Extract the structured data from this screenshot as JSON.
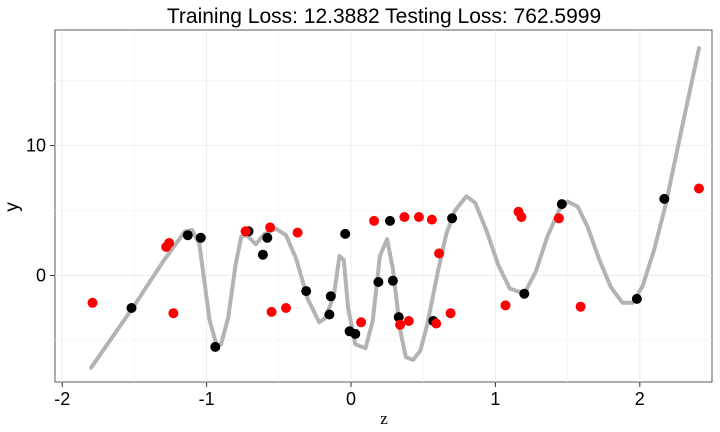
{
  "chart_data": {
    "type": "scatter",
    "title": "Training Loss: 12.3882 Testing Loss: 762.5999",
    "xlabel": "z",
    "ylabel": "y",
    "xlim": [
      -2.05,
      2.5
    ],
    "ylim": [
      -8.2,
      18.9
    ],
    "xticks": [
      -2,
      -1,
      0,
      1,
      2
    ],
    "yticks": [
      0,
      10
    ],
    "grid": true,
    "series": [
      {
        "color": "#000000",
        "role": "training points",
        "points": [
          [
            -1.52,
            -2.5
          ],
          [
            -1.13,
            3.1
          ],
          [
            -1.04,
            2.9
          ],
          [
            -0.94,
            -5.5
          ],
          [
            -0.71,
            3.4
          ],
          [
            -0.61,
            1.6
          ],
          [
            -0.58,
            2.9
          ],
          [
            -0.31,
            -1.2
          ],
          [
            -0.15,
            -3.0
          ],
          [
            -0.14,
            -1.6
          ],
          [
            -0.04,
            3.2
          ],
          [
            -0.01,
            -4.3
          ],
          [
            0.03,
            -4.5
          ],
          [
            0.19,
            -0.5
          ],
          [
            0.27,
            4.2
          ],
          [
            0.29,
            -0.4
          ],
          [
            0.33,
            -3.2
          ],
          [
            0.57,
            -3.5
          ],
          [
            0.7,
            4.4
          ],
          [
            1.2,
            -1.4
          ],
          [
            1.46,
            5.5
          ],
          [
            1.98,
            -1.8
          ],
          [
            2.17,
            5.9
          ]
        ]
      },
      {
        "color": "#ff0000",
        "role": "testing points",
        "points": [
          [
            -1.79,
            -2.1
          ],
          [
            -1.28,
            2.2
          ],
          [
            -1.26,
            2.5
          ],
          [
            -1.23,
            -2.9
          ],
          [
            -0.73,
            3.4
          ],
          [
            -0.56,
            3.7
          ],
          [
            -0.55,
            -2.8
          ],
          [
            -0.45,
            -2.5
          ],
          [
            -0.37,
            3.3
          ],
          [
            0.07,
            -3.6
          ],
          [
            0.16,
            4.2
          ],
          [
            0.34,
            -3.8
          ],
          [
            0.37,
            4.5
          ],
          [
            0.4,
            -3.5
          ],
          [
            0.47,
            4.5
          ],
          [
            0.56,
            4.3
          ],
          [
            0.59,
            -3.7
          ],
          [
            0.61,
            1.7
          ],
          [
            0.69,
            -2.9
          ],
          [
            1.07,
            -2.3
          ],
          [
            1.16,
            4.9
          ],
          [
            1.18,
            4.5
          ],
          [
            1.44,
            4.4
          ],
          [
            1.59,
            -2.4
          ],
          [
            2.41,
            6.7
          ]
        ]
      },
      {
        "color": "#b3b3b3",
        "role": "fitted curve",
        "type": "line",
        "points": [
          [
            -1.8,
            -7.1
          ],
          [
            -1.5,
            -2.3
          ],
          [
            -1.3,
            1.1
          ],
          [
            -1.15,
            3.4
          ],
          [
            -1.1,
            3.5
          ],
          [
            -1.05,
            2.4
          ],
          [
            -0.98,
            -3.4
          ],
          [
            -0.93,
            -5.4
          ],
          [
            -0.9,
            -5.3
          ],
          [
            -0.85,
            -3.2
          ],
          [
            -0.8,
            0.8
          ],
          [
            -0.76,
            3.0
          ],
          [
            -0.72,
            3.1
          ],
          [
            -0.66,
            2.4
          ],
          [
            -0.6,
            3.2
          ],
          [
            -0.52,
            3.6
          ],
          [
            -0.45,
            3.1
          ],
          [
            -0.38,
            1.3
          ],
          [
            -0.3,
            -1.8
          ],
          [
            -0.22,
            -3.6
          ],
          [
            -0.18,
            -3.3
          ],
          [
            -0.12,
            -1.6
          ],
          [
            -0.08,
            1.5
          ],
          [
            -0.05,
            1.2
          ],
          [
            -0.02,
            -2.5
          ],
          [
            0.03,
            -5.3
          ],
          [
            0.1,
            -5.6
          ],
          [
            0.15,
            -3.5
          ],
          [
            0.2,
            1.5
          ],
          [
            0.25,
            2.8
          ],
          [
            0.29,
            0.5
          ],
          [
            0.34,
            -4.2
          ],
          [
            0.38,
            -6.3
          ],
          [
            0.43,
            -6.5
          ],
          [
            0.48,
            -5.8
          ],
          [
            0.53,
            -3.7
          ],
          [
            0.6,
            0.2
          ],
          [
            0.66,
            3.2
          ],
          [
            0.72,
            5.0
          ],
          [
            0.8,
            6.1
          ],
          [
            0.86,
            5.6
          ],
          [
            0.94,
            3.4
          ],
          [
            1.02,
            0.8
          ],
          [
            1.1,
            -1.0
          ],
          [
            1.2,
            -1.4
          ],
          [
            1.28,
            0.3
          ],
          [
            1.36,
            3.0
          ],
          [
            1.44,
            5.0
          ],
          [
            1.5,
            5.7
          ],
          [
            1.57,
            5.3
          ],
          [
            1.64,
            3.7
          ],
          [
            1.72,
            1.2
          ],
          [
            1.8,
            -0.9
          ],
          [
            1.88,
            -2.1
          ],
          [
            1.95,
            -2.1
          ],
          [
            2.02,
            -0.8
          ],
          [
            2.1,
            2.0
          ],
          [
            2.18,
            5.5
          ],
          [
            2.3,
            11.8
          ],
          [
            2.41,
            17.5
          ]
        ]
      }
    ]
  }
}
